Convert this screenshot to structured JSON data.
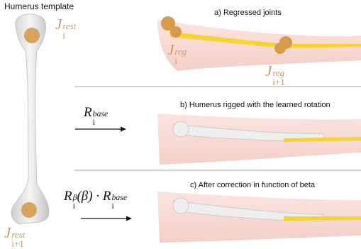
{
  "template": {
    "title": "Humerus template",
    "joint_top": {
      "base": "J",
      "sub": "i",
      "sup": "rest"
    },
    "joint_bottom": {
      "base": "J",
      "sub": "i+1",
      "sup": "rest"
    }
  },
  "panels": [
    {
      "label": "a) Regressed joints",
      "joints": [
        {
          "base": "J",
          "sub": "i",
          "sup": "reg"
        },
        {
          "base": "J",
          "sub": "i+1",
          "sup": "reg"
        }
      ]
    },
    {
      "label": "b) Humerus rigged with the learned rotation",
      "formula": [
        {
          "base": "R",
          "sub": "i",
          "sup": "base"
        }
      ]
    },
    {
      "label": "c) After correction in function of beta",
      "formula": [
        {
          "base": "R",
          "sub": "i",
          "sup": "β"
        },
        {
          "base": "(β) · R",
          "sub": "i",
          "sup": "base"
        }
      ]
    }
  ]
}
